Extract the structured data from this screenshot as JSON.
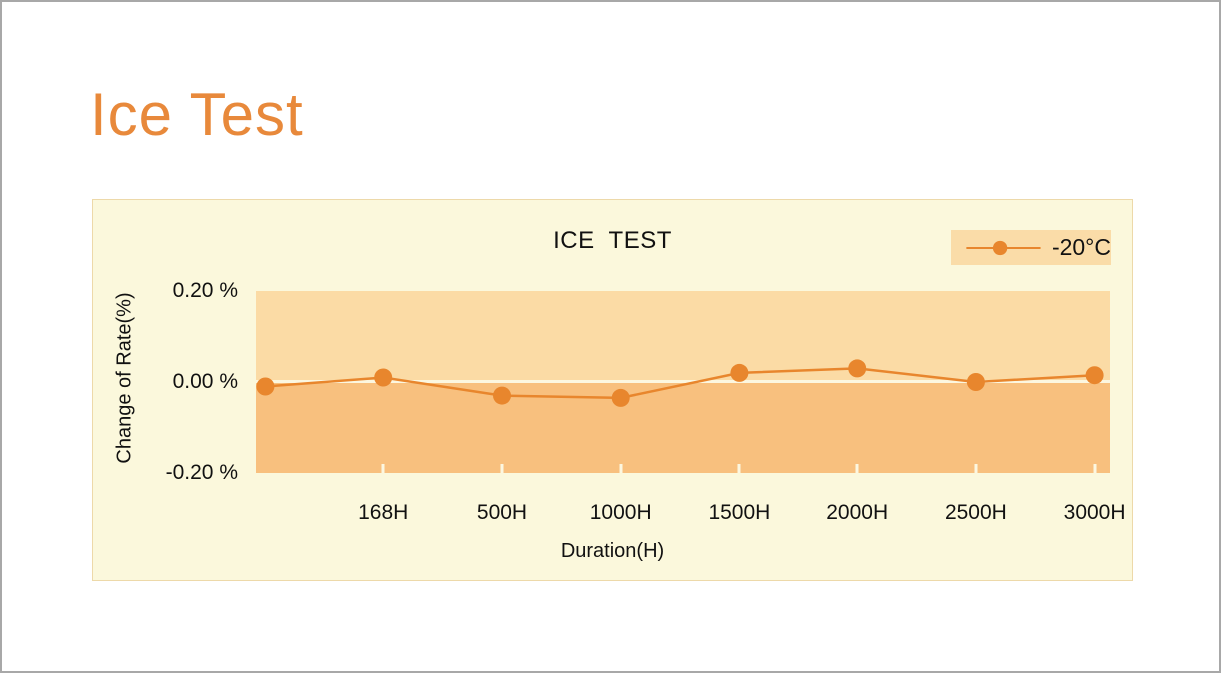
{
  "slide": {
    "title": "Ice Test"
  },
  "chart": {
    "title": "ICE  TEST",
    "legend_label": "-20°C",
    "xlabel": "Duration(H)",
    "ylabel": "Change of Rate(%)"
  },
  "chart_data": {
    "type": "line",
    "title": "ICE  TEST",
    "categories": [
      "",
      "168H",
      "500H",
      "1000H",
      "1500H",
      "2000H",
      "2500H",
      "3000H"
    ],
    "x_tick_labels": [
      "168H",
      "500H",
      "1000H",
      "1500H",
      "2000H",
      "2500H",
      "3000H"
    ],
    "series": [
      {
        "name": "-20°C",
        "values": [
          -0.01,
          0.01,
          -0.03,
          -0.035,
          0.02,
          0.03,
          0.0,
          0.015
        ]
      }
    ],
    "xlabel": "Duration(H)",
    "ylabel": "Change of Rate(%)",
    "y_ticks": [
      {
        "label": "0.20 %",
        "value": 0.2
      },
      {
        "label": "0.00 %",
        "value": 0.0
      },
      {
        "label": "-0.20 %",
        "value": -0.2
      }
    ],
    "ylim": [
      -0.2,
      0.2
    ],
    "grid": false,
    "legend_position": "top-right",
    "marker": "circle",
    "colors": {
      "line": "#E8862D",
      "marker": "#E8862D",
      "band_upper": "#FBDBA5",
      "band_lower": "#F8C07E",
      "panel_bg": "#FBF8DC",
      "legend_bg": "#FADCA8",
      "zero_line": "#FCF7E0",
      "title_accent": "#E8893B"
    }
  }
}
